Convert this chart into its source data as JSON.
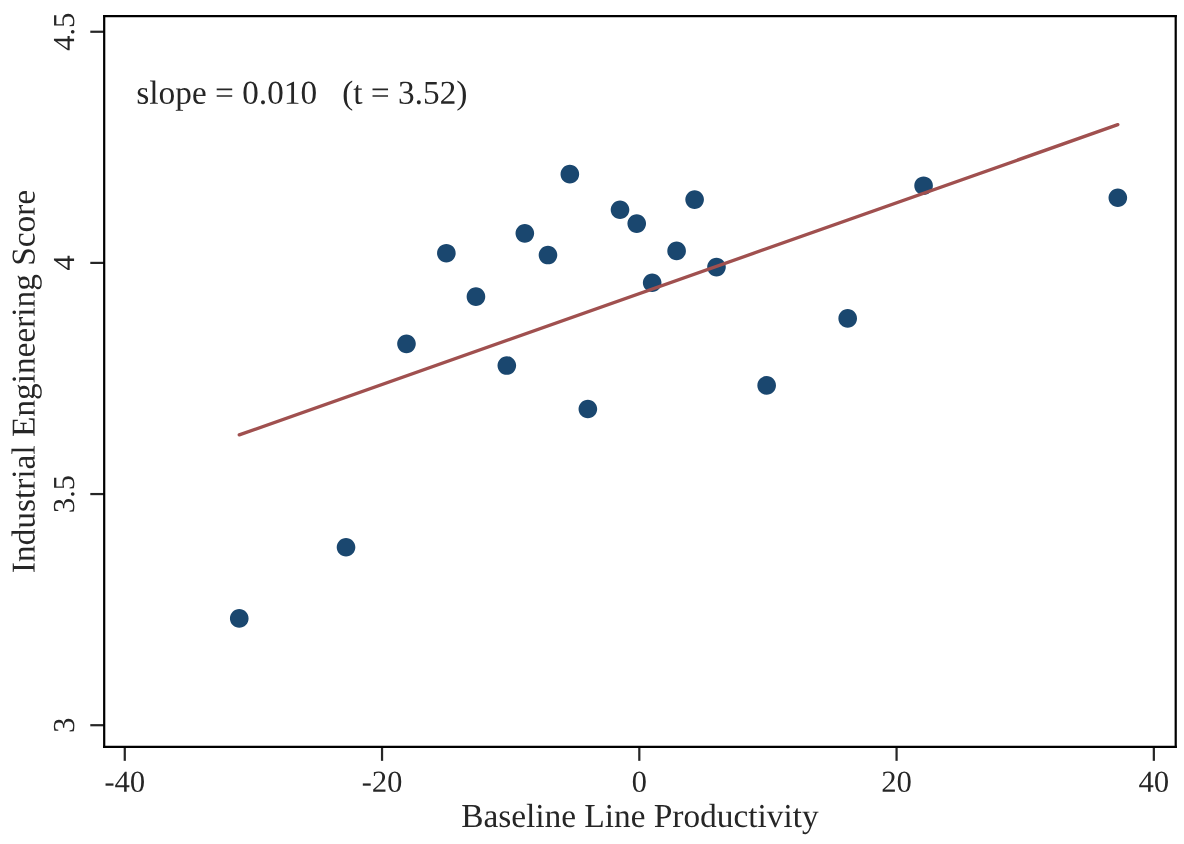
{
  "chart_data": {
    "type": "scatter",
    "xlabel": "Baseline Line Productivity",
    "ylabel": "Industrial Engineering Score",
    "annotations": [
      "slope = 0.010   (t = 3.52)"
    ],
    "xlim": [
      -41.6,
      41.7
    ],
    "ylim": [
      2.953,
      4.534
    ],
    "xticks": [
      -40,
      -20,
      0,
      20,
      40
    ],
    "yticks": [
      3,
      3.5,
      4,
      4.5
    ],
    "grid": false,
    "legend": false,
    "series": [
      {
        "marker": "circle",
        "color": "#1a476f",
        "x": [
          -31.1,
          -22.8,
          -18.1,
          -15.0,
          -12.7,
          -10.3,
          -8.9,
          -7.1,
          -5.4,
          -4.0,
          -1.5,
          -0.2,
          1.0,
          2.9,
          4.3,
          6.0,
          9.9,
          16.2,
          22.1,
          37.2
        ],
        "values": [
          3.231,
          3.385,
          3.825,
          4.021,
          3.927,
          3.778,
          4.064,
          4.017,
          4.192,
          3.684,
          4.115,
          4.085,
          3.957,
          4.026,
          4.137,
          3.991,
          3.735,
          3.88,
          4.167,
          4.141
        ]
      },
      {
        "type": "line",
        "marker": "none",
        "color": "#a0504f",
        "x": [
          -31.1,
          37.2
        ],
        "values": [
          3.628,
          4.299
        ]
      }
    ]
  }
}
